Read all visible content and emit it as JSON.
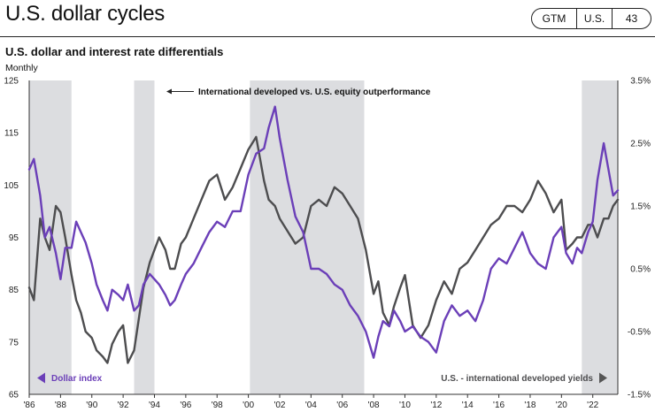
{
  "header": {
    "title": "U.S. dollar cycles",
    "tags": [
      "GTM",
      "U.S.",
      "43"
    ]
  },
  "chart_data": {
    "type": "line",
    "title": "U.S. dollar and interest rate differentials",
    "subtitle": "Monthly",
    "x_tick_labels": [
      "'86",
      "'88",
      "'90",
      "'92",
      "'94",
      "'96",
      "'98",
      "'00",
      "'02",
      "'04",
      "'06",
      "'08",
      "'10",
      "'12",
      "'14",
      "'16",
      "'18",
      "'20",
      "'22"
    ],
    "x_range": [
      1986,
      2023.6
    ],
    "left_axis": {
      "ylim": [
        65,
        125
      ],
      "ticks": [
        "125",
        "115",
        "105",
        "95",
        "85",
        "75",
        "65"
      ]
    },
    "right_axis": {
      "ylim": [
        -1.5,
        3.5
      ],
      "ticks": [
        "3.5%",
        "2.5%",
        "1.5%",
        "0.5%",
        "-0.5%",
        "-1.5%"
      ]
    },
    "shaded_periods": [
      [
        1986,
        1988.7
      ],
      [
        1992.7,
        1994.0
      ],
      [
        2000.1,
        2007.4
      ],
      [
        2021.3,
        2023.6
      ]
    ],
    "shaded_label": "International developed vs. U.S. equity outperformance",
    "series": [
      {
        "name": "Dollar index",
        "axis": "left",
        "color": "#6b3fb8",
        "x": [
          1986.0,
          1986.3,
          1986.7,
          1987.0,
          1987.3,
          1987.7,
          1988.0,
          1988.3,
          1988.7,
          1989.0,
          1989.3,
          1989.6,
          1990.0,
          1990.3,
          1990.7,
          1991.0,
          1991.3,
          1991.7,
          1992.0,
          1992.3,
          1992.7,
          1993.0,
          1993.3,
          1993.7,
          1994.0,
          1994.3,
          1994.7,
          1995.0,
          1995.3,
          1995.7,
          1996.0,
          1996.5,
          1997.0,
          1997.5,
          1998.0,
          1998.5,
          1999.0,
          1999.5,
          2000.0,
          2000.5,
          2001.0,
          2001.3,
          2001.7,
          2002.0,
          2002.5,
          2003.0,
          2003.5,
          2004.0,
          2004.5,
          2005.0,
          2005.5,
          2006.0,
          2006.5,
          2007.0,
          2007.5,
          2008.0,
          2008.3,
          2008.6,
          2009.0,
          2009.3,
          2009.7,
          2010.0,
          2010.5,
          2011.0,
          2011.5,
          2012.0,
          2012.5,
          2013.0,
          2013.5,
          2014.0,
          2014.5,
          2015.0,
          2015.5,
          2016.0,
          2016.5,
          2017.0,
          2017.5,
          2018.0,
          2018.5,
          2019.0,
          2019.5,
          2020.0,
          2020.3,
          2020.7,
          2021.0,
          2021.3,
          2021.7,
          2022.0,
          2022.3,
          2022.7,
          2023.0,
          2023.3,
          2023.6
        ],
        "values": [
          108,
          110,
          103,
          95,
          97,
          92,
          87,
          93,
          93,
          98,
          96,
          94,
          90,
          86,
          83,
          81,
          85,
          84,
          83,
          86,
          81,
          82,
          86,
          88,
          87,
          86,
          84,
          82,
          83,
          86,
          88,
          90,
          93,
          96,
          98,
          97,
          100,
          100,
          107,
          111,
          112,
          116,
          120,
          114,
          106,
          99,
          96,
          89,
          89,
          88,
          86,
          85,
          82,
          80,
          77,
          72,
          76,
          79,
          78,
          81,
          79,
          77,
          78,
          76,
          75,
          73,
          79,
          82,
          80,
          81,
          79,
          83,
          89,
          91,
          90,
          93,
          96,
          92,
          90,
          89,
          95,
          97,
          92,
          90,
          93,
          92,
          96,
          98,
          106,
          113,
          108,
          103,
          104
        ]
      },
      {
        "name": "U.S. - international developed yields",
        "axis": "right",
        "color": "#4d4d4f",
        "x": [
          1986.0,
          1986.3,
          1986.7,
          1987.0,
          1987.3,
          1987.7,
          1988.0,
          1988.3,
          1988.7,
          1989.0,
          1989.3,
          1989.6,
          1990.0,
          1990.3,
          1990.7,
          1991.0,
          1991.3,
          1991.7,
          1992.0,
          1992.3,
          1992.7,
          1993.0,
          1993.3,
          1993.7,
          1994.0,
          1994.3,
          1994.7,
          1995.0,
          1995.3,
          1995.7,
          1996.0,
          1996.5,
          1997.0,
          1997.5,
          1998.0,
          1998.5,
          1999.0,
          1999.5,
          2000.0,
          2000.5,
          2001.0,
          2001.3,
          2001.7,
          2002.0,
          2002.5,
          2003.0,
          2003.5,
          2004.0,
          2004.5,
          2005.0,
          2005.5,
          2006.0,
          2006.5,
          2007.0,
          2007.5,
          2008.0,
          2008.3,
          2008.6,
          2009.0,
          2009.3,
          2009.7,
          2010.0,
          2010.5,
          2011.0,
          2011.5,
          2012.0,
          2012.5,
          2013.0,
          2013.5,
          2014.0,
          2014.5,
          2015.0,
          2015.5,
          2016.0,
          2016.5,
          2017.0,
          2017.5,
          2018.0,
          2018.5,
          2019.0,
          2019.5,
          2020.0,
          2020.3,
          2020.7,
          2021.0,
          2021.3,
          2021.7,
          2022.0,
          2022.3,
          2022.7,
          2023.0,
          2023.3,
          2023.6
        ],
        "values": [
          0.2,
          0.0,
          1.3,
          1.0,
          0.8,
          1.5,
          1.4,
          1.0,
          0.4,
          0.0,
          -0.2,
          -0.5,
          -0.6,
          -0.8,
          -0.9,
          -1.0,
          -0.7,
          -0.5,
          -0.4,
          -1.0,
          -0.8,
          -0.3,
          0.2,
          0.6,
          0.8,
          1.0,
          0.8,
          0.5,
          0.5,
          0.9,
          1.0,
          1.3,
          1.6,
          1.9,
          2.0,
          1.6,
          1.8,
          2.1,
          2.4,
          2.6,
          1.9,
          1.6,
          1.5,
          1.3,
          1.1,
          0.9,
          1.0,
          1.5,
          1.6,
          1.5,
          1.8,
          1.7,
          1.5,
          1.3,
          0.8,
          0.1,
          0.3,
          -0.2,
          -0.4,
          -0.1,
          0.2,
          0.4,
          -0.4,
          -0.6,
          -0.4,
          0.0,
          0.3,
          0.1,
          0.5,
          0.6,
          0.8,
          1.0,
          1.2,
          1.3,
          1.5,
          1.5,
          1.4,
          1.6,
          1.9,
          1.7,
          1.4,
          1.6,
          0.8,
          0.9,
          1.0,
          1.0,
          1.2,
          1.2,
          1.0,
          1.3,
          1.3,
          1.5,
          1.6
        ]
      }
    ]
  }
}
